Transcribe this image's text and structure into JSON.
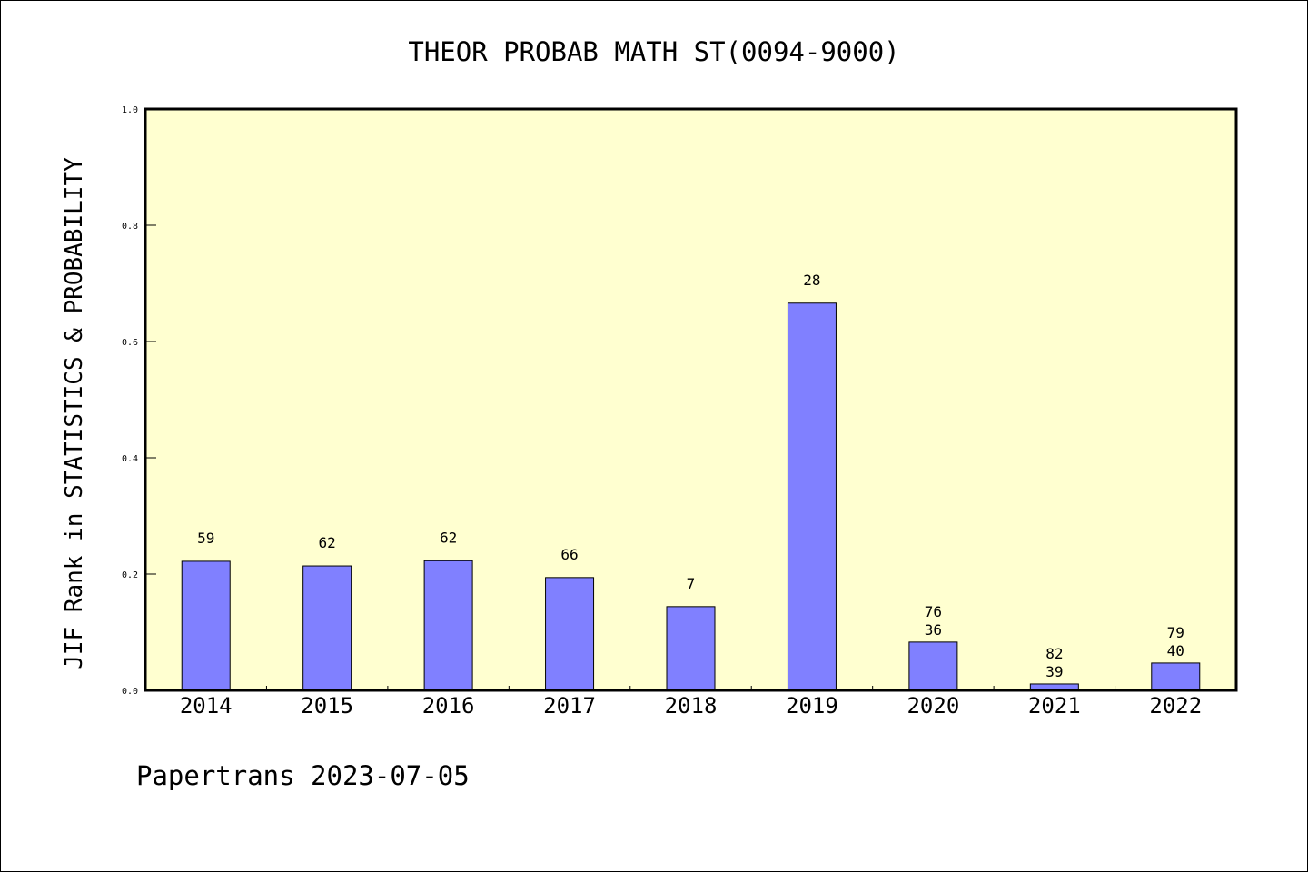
{
  "chart_data": {
    "type": "bar",
    "title": "THEOR PROBAB MATH ST(0094-9000)",
    "xlabel": "",
    "ylabel": "JIF Rank in STATISTICS & PROBABILITY",
    "ylim": [
      0,
      1.0
    ],
    "yticks": [
      "0.0",
      "0.2",
      "0.4",
      "0.6",
      "0.8",
      "1.0"
    ],
    "categories": [
      "2014",
      "2015",
      "2016",
      "2017",
      "2018",
      "2019",
      "2020",
      "2021",
      "2022"
    ],
    "values": [
      0.222,
      0.214,
      0.223,
      0.194,
      0.144,
      0.666,
      0.083,
      0.011,
      0.047
    ],
    "bar_labels": [
      [
        "59"
      ],
      [
        "62"
      ],
      [
        "62"
      ],
      [
        "66"
      ],
      [
        "7"
      ],
      [
        "28"
      ],
      [
        "76",
        "36"
      ],
      [
        "82",
        "39"
      ],
      [
        "79",
        "40"
      ]
    ],
    "grid": false,
    "colors": {
      "bar": "#8080ff",
      "plot_bg": "#ffffd0"
    }
  },
  "footer": "Papertrans 2023-07-05"
}
